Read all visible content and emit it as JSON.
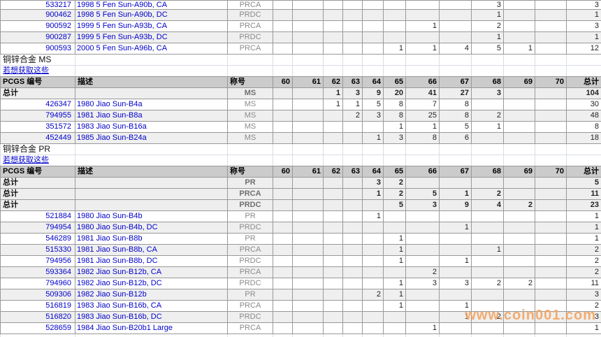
{
  "watermark": "www.coin001.com",
  "colors": {
    "link_blue": "#0000cc",
    "designation_gray": "#8a8a8a",
    "header_bg": "#cbcbcb",
    "stripe_bg": "#efefef",
    "totals_bg": "#eeeeee",
    "grid_dark": "#999999",
    "grid_light": "#d9dde6",
    "watermark_orange": "#f2a058"
  },
  "table": {
    "headers": {
      "pcgs": "PCGS 编号",
      "desc": "描述",
      "designation": "称号",
      "grades": [
        "60",
        "61",
        "62",
        "63",
        "64",
        "65",
        "66",
        "67",
        "68",
        "69",
        "70"
      ],
      "total": "总计"
    },
    "rows": [
      {
        "type": "detail",
        "pcgs": "533217",
        "desc": "1998 5 Fen Sun-A90b, CA",
        "designation": "PRCA",
        "grades": {
          "68": "3"
        },
        "total": "3"
      },
      {
        "type": "detail",
        "pcgs": "900462",
        "desc": "1998 5 Fen Sun-A90b, DC",
        "designation": "PRDC",
        "grades": {
          "68": "1"
        },
        "total": "1"
      },
      {
        "type": "detail",
        "pcgs": "900592",
        "desc": "1999 5 Fen Sun-A93b, CA",
        "designation": "PRCA",
        "grades": {
          "66": "1",
          "68": "2"
        },
        "total": "3"
      },
      {
        "type": "detail",
        "pcgs": "900287",
        "desc": "1999 5 Fen Sun-A93b, DC",
        "designation": "PRDC",
        "grades": {
          "68": "1"
        },
        "total": "1"
      },
      {
        "type": "detail",
        "pcgs": "900593",
        "desc": "2000 5 Fen Sun-A96b, CA",
        "designation": "PRCA",
        "grades": {
          "65": "1",
          "66": "1",
          "67": "4",
          "68": "5",
          "69": "1"
        },
        "total": "12"
      },
      {
        "type": "section_title",
        "text": "铜锌合金  MS"
      },
      {
        "type": "link",
        "text": "若想获取这些"
      },
      {
        "type": "header"
      },
      {
        "type": "totals",
        "label": "总计",
        "designation": "MS",
        "grades": {
          "62": "1",
          "63": "3",
          "64": "9",
          "65": "20",
          "66": "41",
          "67": "27",
          "68": "3"
        },
        "total": "104"
      },
      {
        "type": "detail",
        "pcgs": "426347",
        "desc": "1980 Jiao Sun-B4a",
        "designation": "MS",
        "grades": {
          "62": "1",
          "63": "1",
          "64": "5",
          "65": "8",
          "66": "7",
          "67": "8"
        },
        "total": "30"
      },
      {
        "type": "detail",
        "pcgs": "794955",
        "desc": "1981 Jiao Sun-B8a",
        "designation": "MS",
        "grades": {
          "63": "2",
          "64": "3",
          "65": "8",
          "66": "25",
          "67": "8",
          "68": "2"
        },
        "total": "48"
      },
      {
        "type": "detail",
        "pcgs": "351572",
        "desc": "1983 Jiao Sun-B16a",
        "designation": "MS",
        "grades": {
          "65": "1",
          "66": "1",
          "67": "5",
          "68": "1"
        },
        "total": "8"
      },
      {
        "type": "detail",
        "pcgs": "452449",
        "desc": "1985 Jiao Sun-B24a",
        "designation": "MS",
        "grades": {
          "64": "1",
          "65": "3",
          "66": "8",
          "67": "6"
        },
        "total": "18"
      },
      {
        "type": "section_title",
        "text": "铜锌合金  PR"
      },
      {
        "type": "link",
        "text": "若想获取这些"
      },
      {
        "type": "header"
      },
      {
        "type": "totals",
        "label": "总计",
        "designation": "PR",
        "grades": {
          "64": "3",
          "65": "2"
        },
        "total": "5"
      },
      {
        "type": "totals",
        "label": "总计",
        "designation": "PRCA",
        "grades": {
          "64": "1",
          "65": "2",
          "66": "5",
          "67": "1",
          "68": "2"
        },
        "total": "11"
      },
      {
        "type": "totals",
        "label": "总计",
        "designation": "PRDC",
        "grades": {
          "65": "5",
          "66": "3",
          "67": "9",
          "68": "4",
          "69": "2"
        },
        "total": "23"
      },
      {
        "type": "detail",
        "pcgs": "521884",
        "desc": "1980 Jiao Sun-B4b",
        "designation": "PR",
        "grades": {
          "64": "1"
        },
        "total": "1"
      },
      {
        "type": "detail",
        "pcgs": "794954",
        "desc": "1980 Jiao Sun-B4b, DC",
        "designation": "PRDC",
        "grades": {
          "67": "1"
        },
        "total": "1"
      },
      {
        "type": "detail",
        "pcgs": "546289",
        "desc": "1981 Jiao Sun-B8b",
        "designation": "PR",
        "grades": {
          "65": "1"
        },
        "total": "1"
      },
      {
        "type": "detail",
        "pcgs": "515330",
        "desc": "1981 Jiao Sun-B8b, CA",
        "designation": "PRCA",
        "grades": {
          "65": "1",
          "68": "1"
        },
        "total": "2"
      },
      {
        "type": "detail",
        "pcgs": "794956",
        "desc": "1981 Jiao Sun-B8b, DC",
        "designation": "PRDC",
        "grades": {
          "65": "1",
          "67": "1"
        },
        "total": "2"
      },
      {
        "type": "detail",
        "pcgs": "593364",
        "desc": "1982 Jiao Sun-B12b, CA",
        "designation": "PRCA",
        "grades": {
          "66": "2"
        },
        "total": "2"
      },
      {
        "type": "detail",
        "pcgs": "794960",
        "desc": "1982 Jiao Sun-B12b, DC",
        "designation": "PRDC",
        "grades": {
          "65": "1",
          "66": "3",
          "67": "3",
          "68": "2",
          "69": "2"
        },
        "total": "11"
      },
      {
        "type": "detail",
        "pcgs": "509306",
        "desc": "1982 Jiao Sun-B12b",
        "designation": "PR",
        "grades": {
          "64": "2",
          "65": "1"
        },
        "total": "3"
      },
      {
        "type": "detail",
        "pcgs": "516819",
        "desc": "1983 Jiao Sun-B16b, CA",
        "designation": "PRCA",
        "grades": {
          "65": "1",
          "67": "1"
        },
        "total": "2"
      },
      {
        "type": "detail",
        "pcgs": "516820",
        "desc": "1983 Jiao Sun-B16b, DC",
        "designation": "PRDC",
        "grades": {
          "67": "1",
          "68": "2"
        },
        "total": "3"
      },
      {
        "type": "detail",
        "pcgs": "528659",
        "desc": "1984 Jiao Sun-B20b1 Large",
        "designation": "PRCA",
        "grades": {
          "66": "1"
        },
        "total": "1"
      },
      {
        "type": "partial"
      }
    ]
  }
}
